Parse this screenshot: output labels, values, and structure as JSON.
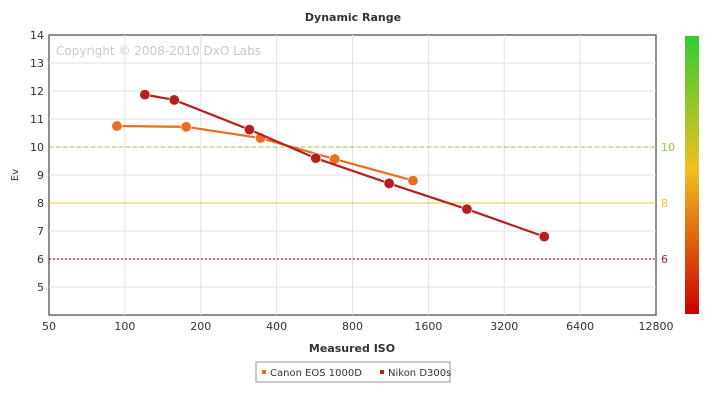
{
  "chart_data": {
    "type": "line",
    "title": "Dynamic Range",
    "xlabel": "Measured ISO",
    "ylabel": "Ev",
    "watermark": "Copyright © 2008-2010 DxO Labs",
    "x_scale": "log2",
    "xlim": [
      50,
      12800
    ],
    "ylim": [
      4,
      14
    ],
    "x_ticks": [
      "50",
      "100",
      "200",
      "400",
      "800",
      "1600",
      "3200",
      "6400",
      "12800"
    ],
    "y_ticks": [
      "5",
      "6",
      "7",
      "8",
      "9",
      "10",
      "11",
      "12",
      "13",
      "14"
    ],
    "grid": true,
    "legend_position": "bottom",
    "series": [
      {
        "name": "Canon EOS 1000D",
        "color": "#ec6d1e",
        "x": [
          93,
          175,
          345,
          680,
          1390
        ],
        "y": [
          10.75,
          10.72,
          10.32,
          9.57,
          8.8
        ]
      },
      {
        "name": "Nikon D300s",
        "color": "#b71f1f",
        "x": [
          120,
          157,
          312,
          572,
          1118,
          2275,
          4612
        ],
        "y": [
          11.87,
          11.68,
          10.62,
          9.6,
          8.7,
          7.78,
          6.8
        ]
      }
    ],
    "reference_lines": [
      {
        "value": 10,
        "label": "10",
        "color": "#8ccd3c",
        "style": "dashed"
      },
      {
        "value": 8,
        "label": "8",
        "color": "#e6c830",
        "style": "solid"
      },
      {
        "value": 6,
        "label": "6",
        "color": "#b02020",
        "style": "dotted"
      }
    ],
    "color_scale": {
      "top": "#33cc33",
      "middle": "#f0c020",
      "bottom": "#cc0000"
    }
  }
}
